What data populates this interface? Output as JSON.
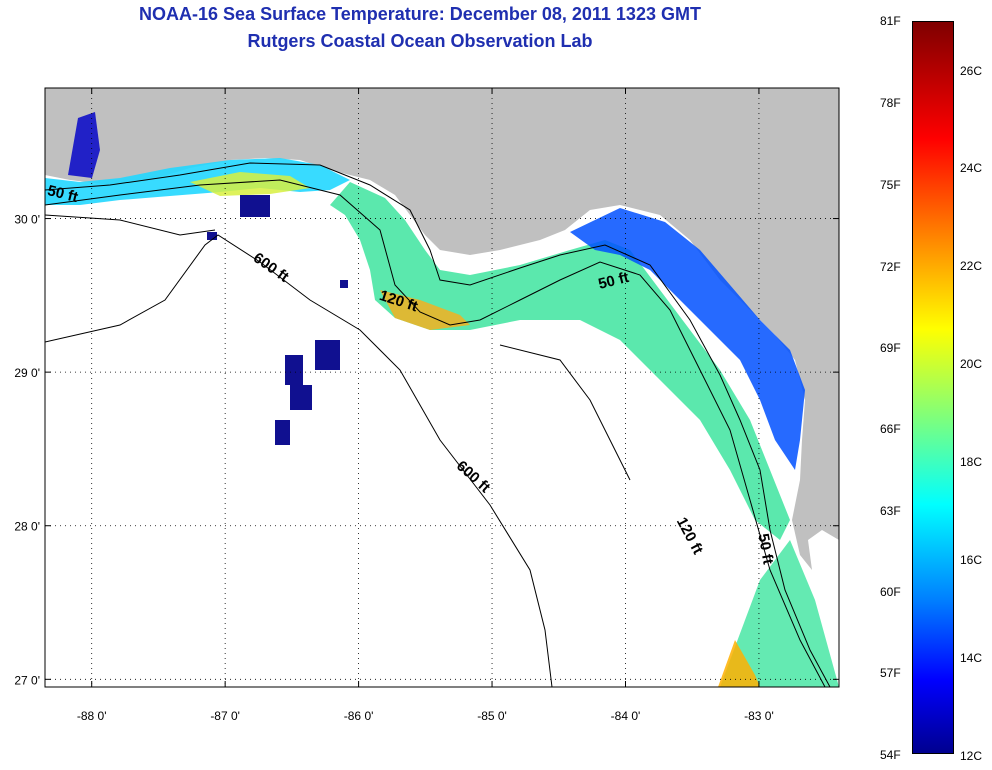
{
  "header": {
    "title": "NOAA-16 Sea Surface Temperature:  December 08, 2011 1323 GMT",
    "subtitle": "Rutgers Coastal Ocean Observation Lab"
  },
  "map": {
    "lon_ticks": [
      {
        "value": -88,
        "label": "-88 0'"
      },
      {
        "value": -87,
        "label": "-87 0'"
      },
      {
        "value": -86,
        "label": "-86 0'"
      },
      {
        "value": -85,
        "label": "-85 0'"
      },
      {
        "value": -84,
        "label": "-84 0'"
      },
      {
        "value": -83,
        "label": "-83 0'"
      }
    ],
    "lat_ticks": [
      {
        "value": 30,
        "label": "30 0'"
      },
      {
        "value": 29,
        "label": "29 0'"
      },
      {
        "value": 28,
        "label": "28 0'"
      },
      {
        "value": 27,
        "label": "27 0'"
      }
    ],
    "lon_range": [
      -88.35,
      -82.4
    ],
    "lat_range": [
      26.95,
      30.85
    ],
    "land_color": "#c0c0c0",
    "contour_labels": {
      "f50_nw": "50 ft",
      "f600_a": "600 ft",
      "f120_a": "120 ft",
      "f50_b": "50 ft",
      "f600_b": "600 ft",
      "f120_b": "120 ft",
      "f50_c": "50 ft"
    }
  },
  "colorbar": {
    "f_labels": [
      "81F",
      "78F",
      "75F",
      "72F",
      "69F",
      "66F",
      "63F",
      "60F",
      "57F",
      "54F"
    ],
    "c_labels": [
      "26C",
      "24C",
      "22C",
      "20C",
      "18C",
      "16C",
      "14C",
      "12C"
    ],
    "colors": [
      "#7f0000",
      "#ff0000",
      "#ff8a00",
      "#ffff00",
      "#80ff7a",
      "#00ffff",
      "#0080ff",
      "#0000ff",
      "#00008f"
    ]
  }
}
